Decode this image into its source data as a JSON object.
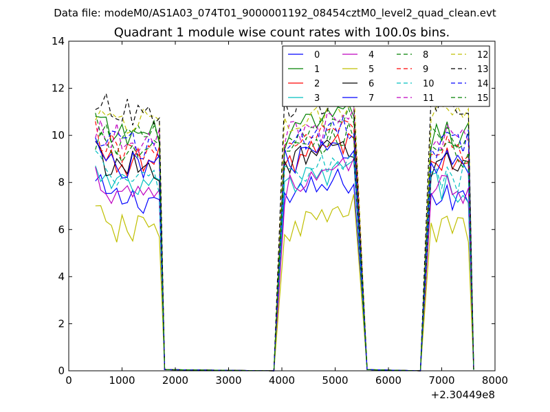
{
  "figure": {
    "suptitle": "Data file: modeM0/AS1A03_074T01_9000001192_08454cztM0_level2_quad_clean.evt",
    "title": "Quadrant 1 module wise count rates with 100.0s bins.",
    "x_offset_label": "+2.30449e8"
  },
  "chart_data": {
    "type": "line",
    "title": "Quadrant 1 module wise count rates with 100.0s bins.",
    "xlabel": "",
    "ylabel": "",
    "xlim": [
      0,
      8000
    ],
    "ylim": [
      0,
      14
    ],
    "x_ticks": [
      0,
      1000,
      2000,
      3000,
      4000,
      5000,
      6000,
      7000,
      8000
    ],
    "y_ticks": [
      0,
      2,
      4,
      6,
      8,
      10,
      12,
      14
    ],
    "x_offset": "+2.30449e8",
    "grid": false,
    "legend_position": "upper right",
    "legend_columns": 4,
    "series": [
      {
        "name": "0",
        "color": "#0000ff",
        "dash": "solid",
        "base": 7.3
      },
      {
        "name": "1",
        "color": "#008000",
        "dash": "solid",
        "base": 10.0
      },
      {
        "name": "2",
        "color": "#ff0000",
        "dash": "solid",
        "base": 8.9
      },
      {
        "name": "3",
        "color": "#00bfbf",
        "dash": "solid",
        "base": 7.8
      },
      {
        "name": "4",
        "color": "#bf00bf",
        "dash": "solid",
        "base": 7.7
      },
      {
        "name": "5",
        "color": "#bfbf00",
        "dash": "solid",
        "base": 6.0
      },
      {
        "name": "6",
        "color": "#000000",
        "dash": "solid",
        "base": 8.7
      },
      {
        "name": "7",
        "color": "#0000ff",
        "dash": "solid",
        "base": 8.8
      },
      {
        "name": "8",
        "color": "#008000",
        "dash": "dashed",
        "base": 9.8
      },
      {
        "name": "9",
        "color": "#ff0000",
        "dash": "dashed",
        "base": 9.4
      },
      {
        "name": "10",
        "color": "#00bfbf",
        "dash": "dashed",
        "base": 8.1
      },
      {
        "name": "11",
        "color": "#bf00bf",
        "dash": "dashed",
        "base": 9.9
      },
      {
        "name": "12",
        "color": "#bfbf00",
        "dash": "dashed",
        "base": 10.6
      },
      {
        "name": "13",
        "color": "#000000",
        "dash": "dashed",
        "base": 11.0
      },
      {
        "name": "14",
        "color": "#0000ff",
        "dash": "dashed",
        "base": 9.6
      },
      {
        "name": "15",
        "color": "#008000",
        "dash": "dashed",
        "base": 9.2
      }
    ],
    "segments": [
      {
        "x_start": 500,
        "x_end": 1700,
        "drop_to_zero_at": 1800
      },
      {
        "x_start": 4050,
        "x_end": 5400,
        "rise_from_zero_at": 3850,
        "drop_to_zero_at": 5600
      },
      {
        "x_start": 6800,
        "x_end": 7500,
        "rise_from_zero_at": 6600,
        "drop_to_zero_at": 7600
      }
    ]
  }
}
